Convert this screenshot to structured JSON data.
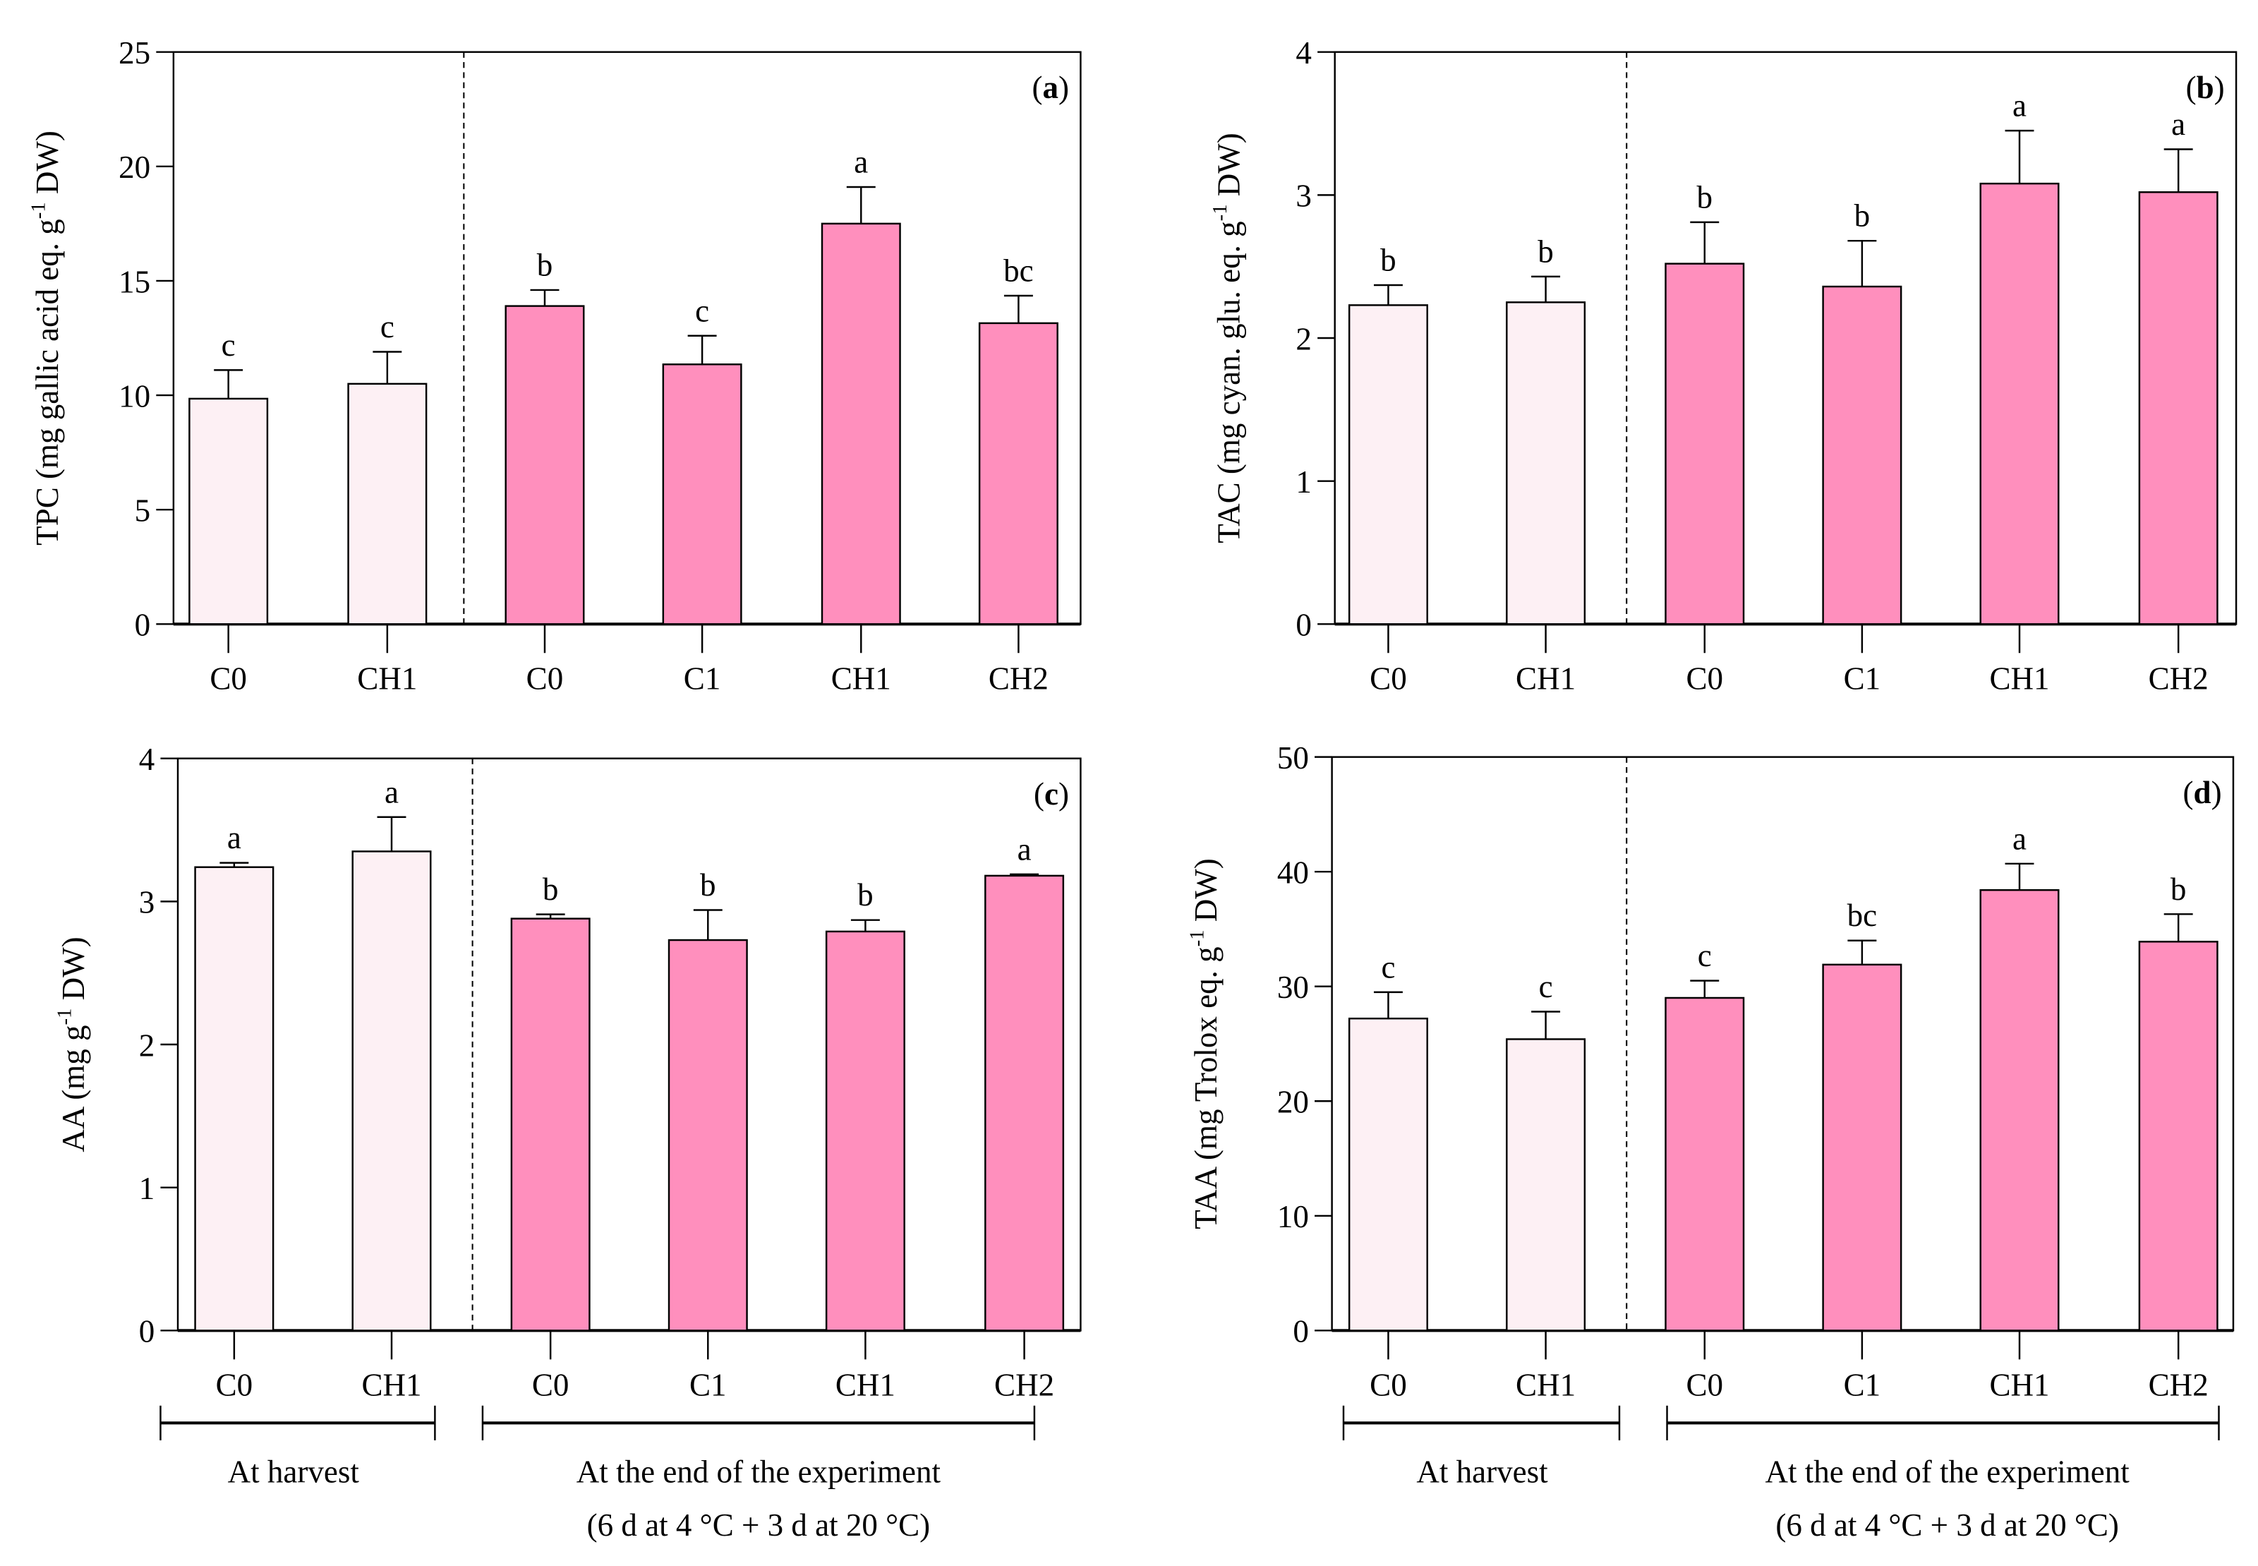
{
  "colors": {
    "harvest_fill": "#fdf0f4",
    "end_fill": "#ff8fbd",
    "stroke": "#000000"
  },
  "group_labels": {
    "harvest": "At harvest",
    "end_line1": "At the end of the experiment",
    "end_line2": "(6 d at 4 °C + 3 d at 20 °C)"
  },
  "chart_data": [
    {
      "type": "bar",
      "panel_label": "a",
      "ylabel": {
        "pre": "TPC (mg gallic acid eq. g",
        "sup": "-1",
        "post": " DW)"
      },
      "ylim": [
        0,
        25
      ],
      "yticks": [
        0,
        5,
        10,
        15,
        20,
        25
      ],
      "categories": [
        "C0",
        "CH1",
        "C0",
        "C1",
        "CH1",
        "CH2"
      ],
      "groups": [
        "harvest",
        "harvest",
        "end",
        "end",
        "end",
        "end"
      ],
      "values": [
        9.85,
        10.5,
        13.9,
        11.35,
        17.5,
        13.15
      ],
      "errors": [
        1.25,
        1.4,
        0.7,
        1.25,
        1.6,
        1.2
      ],
      "letters": [
        "c",
        "c",
        "b",
        "c",
        "a",
        "bc"
      ]
    },
    {
      "type": "bar",
      "panel_label": "b",
      "ylabel": {
        "pre": "TAC (mg cyan. glu. eq. g",
        "sup": "-1",
        "post": " DW)"
      },
      "ylim": [
        0,
        4
      ],
      "yticks": [
        0,
        1,
        2,
        3,
        4
      ],
      "categories": [
        "C0",
        "CH1",
        "C0",
        "C1",
        "CH1",
        "CH2"
      ],
      "groups": [
        "harvest",
        "harvest",
        "end",
        "end",
        "end",
        "end"
      ],
      "values": [
        2.23,
        2.25,
        2.52,
        2.36,
        3.08,
        3.02
      ],
      "errors": [
        0.14,
        0.18,
        0.29,
        0.32,
        0.37,
        0.3
      ],
      "letters": [
        "b",
        "b",
        "b",
        "b",
        "a",
        "a"
      ]
    },
    {
      "type": "bar",
      "panel_label": "c",
      "ylabel": {
        "pre": "AA (mg g",
        "sup": "-1",
        "post": " DW)"
      },
      "ylim": [
        0,
        4
      ],
      "yticks": [
        0,
        1,
        2,
        3,
        4
      ],
      "categories": [
        "C0",
        "CH1",
        "C0",
        "C1",
        "CH1",
        "CH2"
      ],
      "groups": [
        "harvest",
        "harvest",
        "end",
        "end",
        "end",
        "end"
      ],
      "values": [
        3.24,
        3.35,
        2.88,
        2.73,
        2.79,
        3.18
      ],
      "errors": [
        0.03,
        0.24,
        0.03,
        0.21,
        0.08,
        0.01
      ],
      "letters": [
        "a",
        "a",
        "b",
        "b",
        "b",
        "a"
      ]
    },
    {
      "type": "bar",
      "panel_label": "d",
      "ylabel": {
        "pre": "TAA (mg Trolox eq. g",
        "sup": "-1",
        "post": " DW)"
      },
      "ylim": [
        0,
        50
      ],
      "yticks": [
        0,
        10,
        20,
        30,
        40,
        50
      ],
      "categories": [
        "C0",
        "CH1",
        "C0",
        "C1",
        "CH1",
        "CH2"
      ],
      "groups": [
        "harvest",
        "harvest",
        "end",
        "end",
        "end",
        "end"
      ],
      "values": [
        27.2,
        25.4,
        29.0,
        31.9,
        38.4,
        33.9
      ],
      "errors": [
        2.3,
        2.4,
        1.5,
        2.1,
        2.3,
        2.4
      ],
      "letters": [
        "c",
        "c",
        "c",
        "bc",
        "a",
        "b"
      ]
    }
  ]
}
